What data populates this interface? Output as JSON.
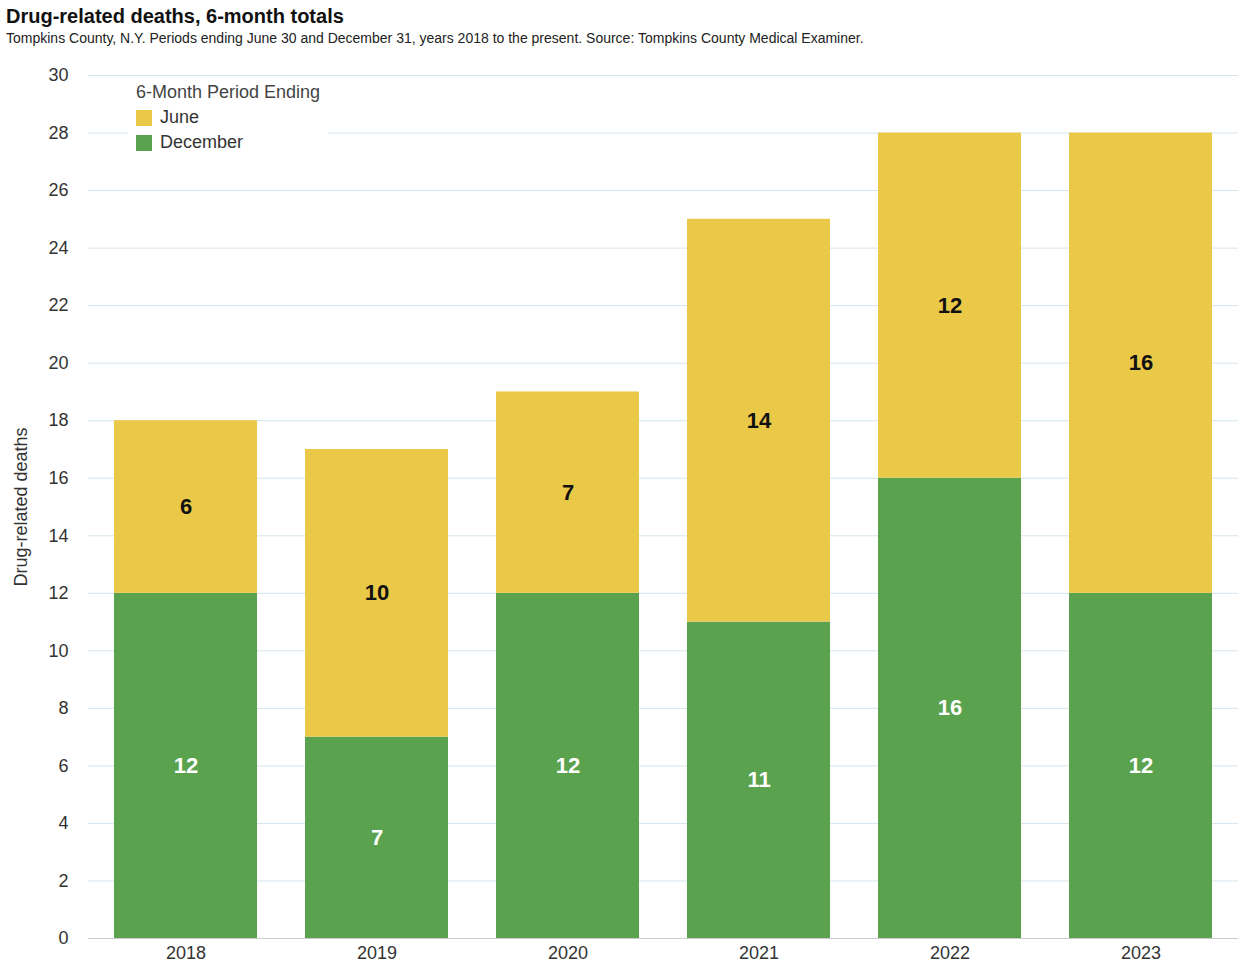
{
  "chart_data": {
    "type": "bar",
    "title": "Drug-related deaths, 6-month totals",
    "subtitle": "Tompkins County, N.Y. Periods ending June 30 and December 31, years 2018 to the present. Source: Tompkins County Medical Examiner.",
    "y_label": "Drug-related deaths",
    "legend_title": "6-Month Period Ending",
    "categories": [
      "2018",
      "2019",
      "2020",
      "2021",
      "2022",
      "2023"
    ],
    "series": [
      {
        "name": "June",
        "color": "#ebc948",
        "values": [
          6,
          10,
          7,
          14,
          12,
          16
        ]
      },
      {
        "name": "December",
        "color": "#5ba24f",
        "values": [
          12,
          7,
          12,
          11,
          16,
          12
        ]
      }
    ],
    "ylim": [
      0,
      30
    ],
    "yticks": [
      0,
      2,
      4,
      6,
      8,
      10,
      12,
      14,
      16,
      18,
      20,
      22,
      24,
      26,
      28,
      30
    ],
    "grid": true,
    "stacked": true,
    "data_labels": true,
    "legend": "top-left"
  }
}
